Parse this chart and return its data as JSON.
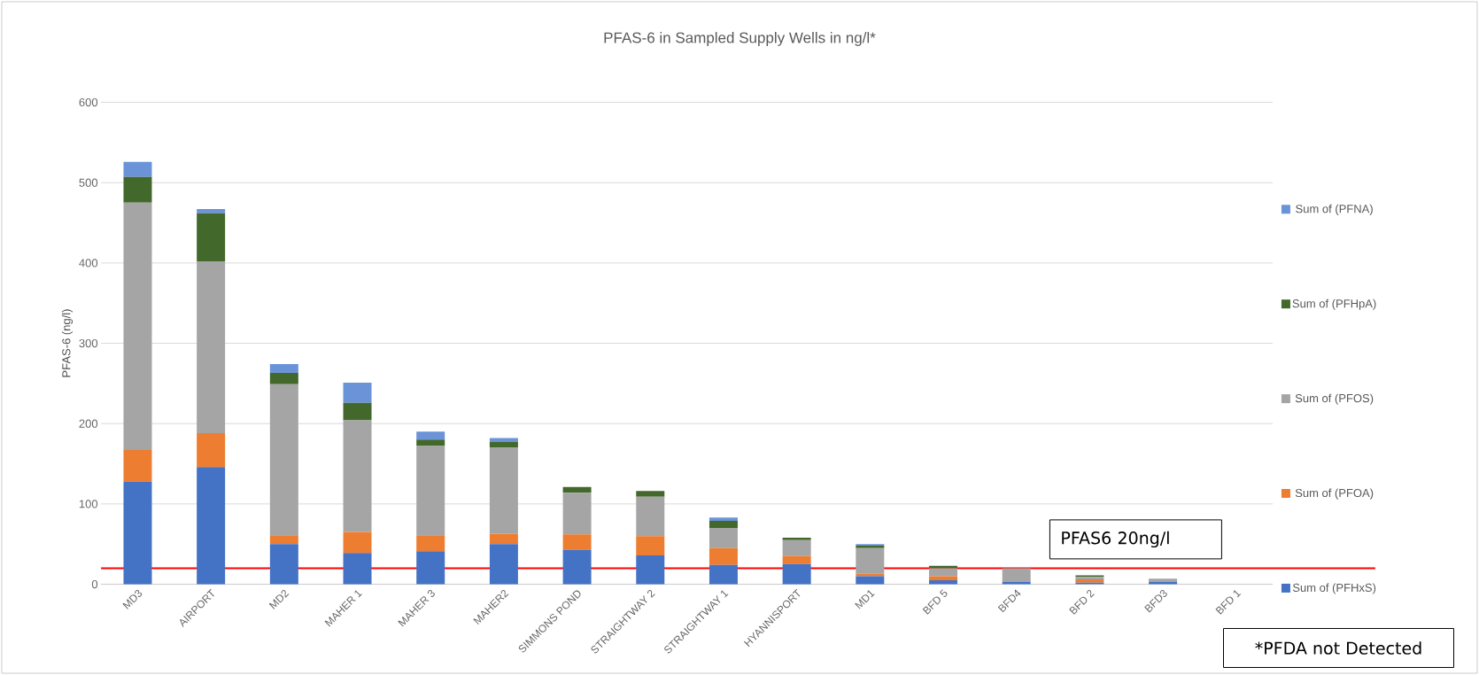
{
  "chart_data": {
    "type": "bar",
    "title": "PFAS-6 in Sampled Supply Wells in ng/l*",
    "ylabel": "PFAS-6 (ng/l)",
    "categories": [
      "MD3",
      "AIRPORT",
      "MD2",
      "MAHER 1",
      "MAHER 3",
      "MAHER2",
      "SIMMONS POND",
      "STRAIGHTWAY 2",
      "STRAIGHTWAY 1",
      "HYANNISPORT",
      "MD1",
      "BFD 5",
      "BFD4",
      "BFD 2",
      "BFD3",
      "BFD 1"
    ],
    "series": [
      {
        "name": "Sum of  (PFHxS)",
        "color": "#4472c4",
        "values": [
          128,
          146,
          50,
          39,
          41,
          50,
          43,
          36,
          24,
          25,
          10,
          5,
          3,
          2,
          3,
          0
        ]
      },
      {
        "name": "Sum of  (PFOA)",
        "color": "#ed7d31",
        "values": [
          39,
          42,
          11,
          26,
          20,
          13,
          19,
          24,
          21,
          10,
          3,
          5,
          0,
          4,
          0,
          0
        ]
      },
      {
        "name": "Sum of  (PFOS)",
        "color": "#a5a5a5",
        "values": [
          308,
          214,
          188,
          139,
          111,
          107,
          52,
          49,
          25,
          20,
          32,
          10,
          17,
          3,
          4,
          0
        ]
      },
      {
        "name": "Sum of  (PFHpA)",
        "color": "#43682b",
        "values": [
          32,
          60,
          14,
          22,
          8,
          7,
          7,
          7,
          9,
          3,
          3,
          3,
          0,
          2,
          0,
          0
        ]
      },
      {
        "name": "Sum of  (PFNA)",
        "color": "#6a93d8",
        "values": [
          19,
          5,
          11,
          25,
          10,
          5,
          0,
          0,
          4,
          0,
          2,
          0,
          0,
          0,
          0,
          0
        ]
      }
    ],
    "stacked": true,
    "ylim": [
      0,
      600
    ],
    "yticks": [
      0,
      100,
      200,
      300,
      400,
      500,
      600
    ],
    "grid": "y",
    "legend": "right",
    "ref_lines": [
      {
        "axis": "y",
        "value": 20,
        "label": "PFAS6 20ng/l",
        "color": "#ff0000"
      }
    ],
    "annotations": [
      "*PFDA not Detected"
    ]
  }
}
